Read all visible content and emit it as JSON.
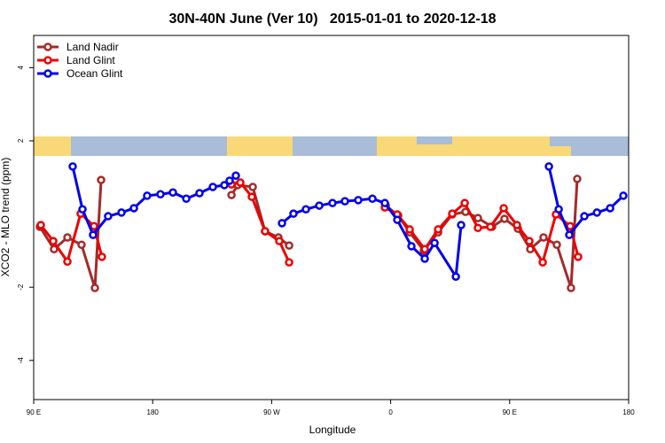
{
  "chart_data": {
    "type": "line",
    "title": "30N-40N June (Ver 10)   2015-01-01 to 2020-12-18",
    "x_label": "Longitude",
    "y_label": "XCO2 - MLO trend (ppm)",
    "xlim": [
      90,
      540
    ],
    "ylim": [
      -5.07,
      4.88
    ],
    "xticks": [
      {
        "value": 90,
        "label": "90 E"
      },
      180,
      {
        "value": 270,
        "label": "90 W"
      },
      {
        "value": 360,
        "label": "0"
      },
      {
        "value": 450,
        "label": "90 E"
      },
      {
        "value": 540,
        "label": "180"
      }
    ],
    "yticks": [
      -4,
      -2,
      2,
      4
    ],
    "legend": "top-left",
    "series": [
      {
        "name": "Land Nadir",
        "color": "#a52a2a",
        "x": [
          94.7,
          105.4,
          115.5,
          126.2,
          136.3,
          141.0,
          null,
          239.6,
          244.3,
          255.7,
          265.0,
          275.1,
          283.2,
          null,
          356.3,
          365.7,
          374.4,
          385.1,
          395.9,
          406.6,
          416.6,
          426.0,
          436.7,
          446.1,
          456.2,
          465.6,
          475.6,
          485.7,
          496.4,
          501.1
        ],
        "values": [
          -0.35,
          -0.96,
          -0.64,
          -0.84,
          -2.02,
          0.93,
          null,
          0.52,
          0.79,
          0.74,
          -0.47,
          -0.64,
          -0.86,
          null,
          0.23,
          -0.04,
          -0.5,
          -1.0,
          -0.5,
          -0.01,
          0.06,
          -0.11,
          -0.35,
          -0.13,
          -0.4,
          -0.96,
          -0.64,
          -0.84,
          -2.02,
          0.96
        ]
      },
      {
        "name": "Land Glint",
        "color": "#ee0000",
        "x": [
          95.4,
          104.8,
          115.5,
          125.5,
          135.6,
          141.6,
          null,
          239.6,
          246.3,
          255.0,
          265.0,
          275.8,
          283.2,
          null,
          355.6,
          365.0,
          374.4,
          385.8,
          395.9,
          406.6,
          416.0,
          426.0,
          435.4,
          445.5,
          455.5,
          464.9,
          475.0,
          485.0,
          495.8,
          501.8
        ],
        "values": [
          -0.3,
          -0.74,
          -1.3,
          0.01,
          -0.33,
          -1.17,
          null,
          0.81,
          0.86,
          0.47,
          -0.47,
          -0.74,
          -1.32,
          null,
          0.18,
          -0.01,
          -0.42,
          -0.96,
          -0.42,
          0.01,
          0.3,
          -0.38,
          -0.35,
          0.16,
          -0.3,
          -0.74,
          -1.32,
          -0.01,
          -0.33,
          -1.17
        ]
      },
      {
        "name": "Ocean Glint",
        "color": "#0000ee",
        "x": [
          119.5,
          126.9,
          134.9,
          146.3,
          156.4,
          165.8,
          175.8,
          185.9,
          195.3,
          205.4,
          215.4,
          225.5,
          234.2,
          238.2,
          242.9,
          null,
          277.8,
          286.5,
          295.9,
          306.0,
          316.0,
          325.4,
          335.5,
          346.2,
          355.6,
          365.0,
          375.7,
          385.8,
          393.2,
          409.3,
          413.3,
          null,
          479.7,
          487.1,
          495.1,
          506.5,
          516.0,
          526.0,
          536.0
        ],
        "values": [
          1.3,
          0.13,
          -0.57,
          -0.06,
          0.04,
          0.16,
          0.5,
          0.54,
          0.59,
          0.42,
          0.57,
          0.74,
          0.79,
          0.91,
          1.05,
          null,
          -0.25,
          0.01,
          0.13,
          0.23,
          0.3,
          0.35,
          0.38,
          0.42,
          0.3,
          -0.16,
          -0.88,
          -1.22,
          -0.79,
          -1.71,
          -0.3,
          null,
          1.3,
          0.13,
          -0.57,
          -0.06,
          0.04,
          0.16,
          0.5
        ]
      }
    ]
  }
}
